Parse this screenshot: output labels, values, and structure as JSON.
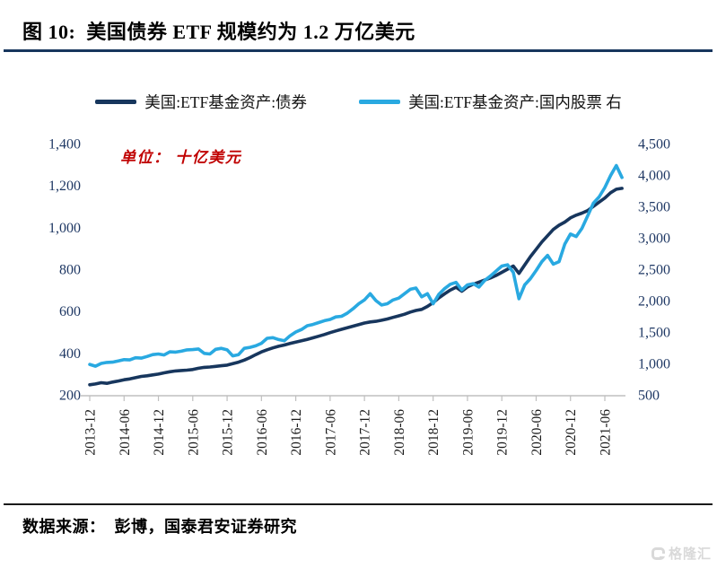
{
  "header": {
    "title": "图 10:  美国债券 ETF 规模约为 1.2 万亿美元"
  },
  "legend": {
    "items": [
      {
        "label": "美国:ETF基金资产:债券",
        "color": "#17365d"
      },
      {
        "label": "美国:ETF基金资产:国内股票 右",
        "color": "#29a9e1"
      }
    ]
  },
  "annotation": {
    "unit_note": "单位： 十亿美元"
  },
  "footer": {
    "source": "数据来源：  彭博，国泰君安证券研究"
  },
  "watermark": {
    "text": "格隆汇"
  },
  "chart_data": {
    "type": "line",
    "title": "美国债券 ETF 规模约为 1.2 万亿美元",
    "unit": "十亿美元",
    "legend_position": "top",
    "grid": false,
    "x_start": "2013-12",
    "x_freq": "monthly",
    "x_tick_labels": [
      "2013-12",
      "2014-06",
      "2014-12",
      "2015-06",
      "2015-12",
      "2016-06",
      "2016-12",
      "2017-06",
      "2017-12",
      "2018-06",
      "2018-12",
      "2019-06",
      "2019-12",
      "2020-06",
      "2020-12",
      "2021-06"
    ],
    "left_axis": {
      "min": 200,
      "max": 1400,
      "tick_step": 200
    },
    "right_axis": {
      "min": 500,
      "max": 4500,
      "tick_step": 500
    },
    "axis_color": "#bfbfbf",
    "label_color_y": "#1f3864",
    "label_color_x": "#1a1a1a",
    "series": [
      {
        "name": "美国:ETF基金资产:债券",
        "axis": "left",
        "color": "#17365d",
        "values": [
          248,
          252,
          258,
          255,
          261,
          266,
          272,
          276,
          282,
          288,
          291,
          295,
          299,
          305,
          310,
          314,
          316,
          318,
          321,
          327,
          331,
          333,
          336,
          339,
          342,
          349,
          356,
          366,
          378,
          392,
          405,
          415,
          424,
          432,
          438,
          445,
          452,
          458,
          465,
          472,
          480,
          488,
          497,
          505,
          513,
          520,
          528,
          535,
          543,
          548,
          551,
          556,
          562,
          570,
          577,
          585,
          595,
          603,
          608,
          622,
          640,
          663,
          682,
          700,
          714,
          695,
          715,
          728,
          738,
          748,
          758,
          770,
          785,
          800,
          815,
          780,
          820,
          860,
          895,
          930,
          960,
          990,
          1010,
          1025,
          1045,
          1058,
          1068,
          1080,
          1100,
          1120,
          1140,
          1165,
          1182,
          1186
        ]
      },
      {
        "name": "美国:ETF基金资产:国内股票",
        "axis": "right",
        "color": "#29a9e1",
        "values": [
          985,
          955,
          1000,
          1015,
          1020,
          1040,
          1060,
          1055,
          1090,
          1085,
          1110,
          1140,
          1150,
          1135,
          1185,
          1180,
          1195,
          1215,
          1220,
          1230,
          1160,
          1150,
          1225,
          1240,
          1215,
          1120,
          1140,
          1240,
          1255,
          1280,
          1320,
          1400,
          1410,
          1380,
          1360,
          1440,
          1500,
          1540,
          1600,
          1620,
          1650,
          1680,
          1700,
          1740,
          1750,
          1800,
          1870,
          1950,
          2010,
          2110,
          2000,
          1930,
          1950,
          2010,
          2040,
          2110,
          2180,
          2200,
          2060,
          2110,
          1950,
          2100,
          2190,
          2260,
          2290,
          2170,
          2250,
          2270,
          2215,
          2320,
          2390,
          2470,
          2550,
          2570,
          2450,
          2030,
          2250,
          2350,
          2480,
          2620,
          2720,
          2580,
          2620,
          2900,
          3060,
          3020,
          3150,
          3350,
          3550,
          3650,
          3800,
          3990,
          4150,
          3960
        ]
      }
    ]
  }
}
